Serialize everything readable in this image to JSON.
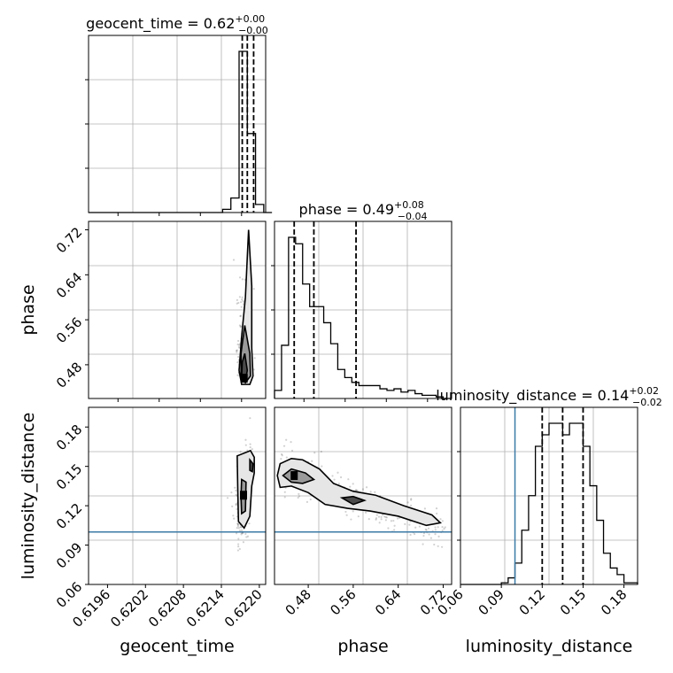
{
  "chart_data": [
    {
      "panel": "geocent_time-hist",
      "type": "histogram",
      "param": "geocent_time",
      "title": {
        "prefix": "geocent_time = ",
        "value": "0.62",
        "plus": "+0.00",
        "minus": "−0.00"
      },
      "xlim": [
        0.6193,
        0.6221
      ],
      "bins": [
        0.6193,
        0.62142,
        0.62155,
        0.62168,
        0.62181,
        0.62194,
        0.62207,
        0.6222
      ],
      "counts": [
        0,
        0.02,
        0.09,
        1.0,
        0.49,
        0.05,
        0
      ],
      "quantiles": [
        0.62173,
        0.62181,
        0.62191
      ],
      "grid": true
    },
    {
      "panel": "phase-hist",
      "type": "histogram",
      "param": "phase",
      "title": {
        "prefix": "phase = ",
        "value": "0.49",
        "plus": "+0.08",
        "minus": "−0.04"
      },
      "xlim": [
        0.42,
        0.735
      ],
      "bins": [
        0.42,
        0.4325,
        0.445,
        0.4575,
        0.47,
        0.4825,
        0.495,
        0.5075,
        0.52,
        0.5325,
        0.545,
        0.5575,
        0.57,
        0.5825,
        0.595,
        0.6075,
        0.62,
        0.6325,
        0.645,
        0.6575,
        0.67,
        0.6825,
        0.695,
        0.7075,
        0.72,
        0.735
      ],
      "counts": [
        0.05,
        0.33,
        1.0,
        0.96,
        0.71,
        0.57,
        0.57,
        0.47,
        0.34,
        0.18,
        0.13,
        0.1,
        0.08,
        0.08,
        0.08,
        0.06,
        0.05,
        0.06,
        0.04,
        0.05,
        0.03,
        0.02,
        0.02,
        0.01,
        0
      ],
      "quantiles": [
        0.455,
        0.49,
        0.565
      ],
      "grid": true
    },
    {
      "panel": "luminosity_distance-hist",
      "type": "histogram",
      "param": "luminosity_distance",
      "title": {
        "prefix": "luminosity_distance = ",
        "value": "0.14",
        "plus": "+0.02",
        "minus": "−0.02"
      },
      "xlim": [
        0.06,
        0.19
      ],
      "xticks": [
        "0.06",
        "0.09",
        "0.12",
        "0.15",
        "0.18"
      ],
      "xticks_values": [
        0.06,
        0.09,
        0.12,
        0.15,
        0.18
      ],
      "xlabel": "luminosity_distance",
      "bins": [
        0.06,
        0.09,
        0.095,
        0.1,
        0.105,
        0.11,
        0.115,
        0.12,
        0.125,
        0.13,
        0.135,
        0.14,
        0.145,
        0.15,
        0.155,
        0.16,
        0.165,
        0.17,
        0.175,
        0.18,
        0.185,
        0.19
      ],
      "counts": [
        0,
        0.01,
        0.04,
        0.13,
        0.33,
        0.54,
        0.84,
        0.91,
        0.98,
        0.98,
        0.91,
        0.98,
        0.98,
        0.84,
        0.6,
        0.39,
        0.19,
        0.1,
        0.06,
        0.01,
        0.01
      ],
      "quantiles": [
        0.12,
        0.135,
        0.15
      ],
      "truth": 0.1,
      "grid": true
    },
    {
      "panel": "phase-vs-geocent_time",
      "type": "scatter",
      "x_param": "geocent_time",
      "y_param": "phase",
      "xlim": [
        0.6193,
        0.6221
      ],
      "ylim": [
        0.42,
        0.735
      ],
      "yticks": [
        "0.48",
        "0.56",
        "0.64",
        "0.72"
      ],
      "yticks_values": [
        0.48,
        0.56,
        0.64,
        0.72
      ],
      "ylabel": "phase",
      "contours": [
        [
          [
            0.62183,
            0.72
          ],
          [
            0.62188,
            0.62
          ],
          [
            0.62188,
            0.51
          ],
          [
            0.6219,
            0.46
          ],
          [
            0.62185,
            0.445
          ],
          [
            0.62172,
            0.445
          ],
          [
            0.62168,
            0.47
          ],
          [
            0.62172,
            0.53
          ],
          [
            0.62178,
            0.6
          ],
          [
            0.62183,
            0.72
          ]
        ],
        [
          [
            0.62177,
            0.55
          ],
          [
            0.62185,
            0.5
          ],
          [
            0.62186,
            0.46
          ],
          [
            0.62178,
            0.448
          ],
          [
            0.62171,
            0.455
          ],
          [
            0.62171,
            0.5
          ],
          [
            0.62177,
            0.55
          ]
        ],
        [
          [
            0.62177,
            0.5
          ],
          [
            0.62181,
            0.47
          ],
          [
            0.62178,
            0.452
          ],
          [
            0.62172,
            0.458
          ],
          [
            0.62173,
            0.485
          ],
          [
            0.62177,
            0.5
          ]
        ]
      ],
      "peak": [
        0.62176,
        0.456
      ],
      "grid": true
    },
    {
      "panel": "luminosity_distance-vs-geocent_time",
      "type": "scatter",
      "x_param": "geocent_time",
      "y_param": "luminosity_distance",
      "xlim": [
        0.6193,
        0.6221
      ],
      "ylim": [
        0.06,
        0.195
      ],
      "xticks": [
        "0.6196",
        "0.6202",
        "0.6208",
        "0.6214",
        "0.6220"
      ],
      "xticks_values": [
        0.6196,
        0.6202,
        0.6208,
        0.6214,
        0.622
      ],
      "yticks": [
        "0.06",
        "0.09",
        "0.12",
        "0.15",
        "0.18"
      ],
      "yticks_values": [
        0.06,
        0.09,
        0.12,
        0.15,
        0.18
      ],
      "xlabel": "geocent_time",
      "ylabel": "luminosity_distance",
      "truth_y": 0.1,
      "contours": [
        [
          [
            0.62165,
            0.158
          ],
          [
            0.62186,
            0.162
          ],
          [
            0.62192,
            0.157
          ],
          [
            0.62192,
            0.145
          ],
          [
            0.62188,
            0.135
          ],
          [
            0.62185,
            0.112
          ],
          [
            0.62176,
            0.103
          ],
          [
            0.62167,
            0.108
          ],
          [
            0.62166,
            0.13
          ],
          [
            0.62165,
            0.158
          ]
        ],
        [
          [
            0.62172,
            0.14
          ],
          [
            0.62179,
            0.138
          ],
          [
            0.62178,
            0.116
          ],
          [
            0.62172,
            0.114
          ],
          [
            0.62171,
            0.127
          ],
          [
            0.62172,
            0.14
          ]
        ],
        [
          [
            0.62185,
            0.155
          ],
          [
            0.6219,
            0.152
          ],
          [
            0.62189,
            0.146
          ],
          [
            0.62185,
            0.147
          ],
          [
            0.62185,
            0.155
          ]
        ]
      ],
      "peak": [
        0.62175,
        0.128
      ],
      "grid": true
    },
    {
      "panel": "luminosity_distance-vs-phase",
      "type": "scatter",
      "x_param": "phase",
      "y_param": "luminosity_distance",
      "xlim": [
        0.42,
        0.735
      ],
      "ylim": [
        0.06,
        0.195
      ],
      "xticks": [
        "0.48",
        "0.56",
        "0.64",
        "0.72"
      ],
      "xticks_values": [
        0.48,
        0.56,
        0.64,
        0.72
      ],
      "yticks": [],
      "xlabel": "phase",
      "truth_y": 0.1,
      "contours": [
        [
          [
            0.425,
            0.143
          ],
          [
            0.43,
            0.152
          ],
          [
            0.45,
            0.156
          ],
          [
            0.47,
            0.155
          ],
          [
            0.5,
            0.148
          ],
          [
            0.525,
            0.137
          ],
          [
            0.56,
            0.131
          ],
          [
            0.6,
            0.128
          ],
          [
            0.65,
            0.12
          ],
          [
            0.7,
            0.113
          ],
          [
            0.715,
            0.107
          ],
          [
            0.69,
            0.105
          ],
          [
            0.64,
            0.112
          ],
          [
            0.59,
            0.116
          ],
          [
            0.55,
            0.118
          ],
          [
            0.51,
            0.121
          ],
          [
            0.48,
            0.13
          ],
          [
            0.45,
            0.135
          ],
          [
            0.43,
            0.134
          ],
          [
            0.425,
            0.143
          ]
        ],
        [
          [
            0.435,
            0.143
          ],
          [
            0.45,
            0.148
          ],
          [
            0.475,
            0.145
          ],
          [
            0.49,
            0.14
          ],
          [
            0.47,
            0.137
          ],
          [
            0.45,
            0.138
          ],
          [
            0.435,
            0.143
          ]
        ],
        [
          [
            0.54,
            0.126
          ],
          [
            0.56,
            0.127
          ],
          [
            0.58,
            0.124
          ],
          [
            0.56,
            0.121
          ],
          [
            0.54,
            0.126
          ]
        ]
      ],
      "peak": [
        0.455,
        0.143
      ],
      "grid": true
    }
  ]
}
